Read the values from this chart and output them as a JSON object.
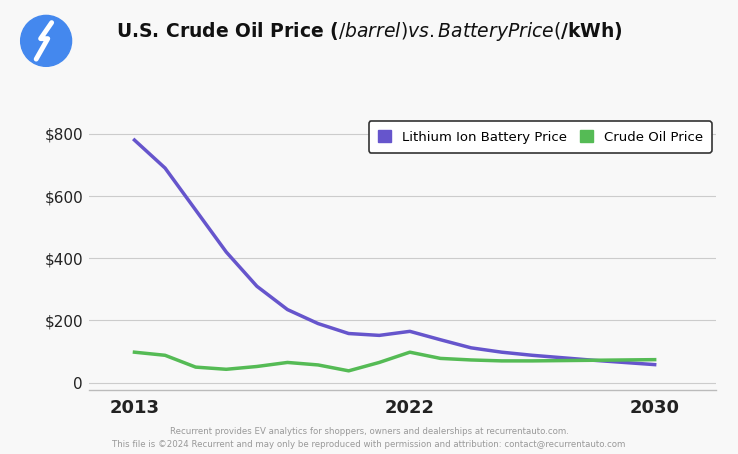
{
  "title_display": "U.S. Crude Oil Price ($/barrel)vs. Battery Price ($/kWh)",
  "battery_years": [
    2013,
    2014,
    2015,
    2016,
    2017,
    2018,
    2019,
    2020,
    2021,
    2022,
    2023,
    2024,
    2025,
    2026,
    2027,
    2028,
    2029,
    2030
  ],
  "battery_prices": [
    780,
    690,
    555,
    420,
    310,
    235,
    190,
    158,
    152,
    165,
    138,
    112,
    98,
    88,
    80,
    72,
    65,
    58
  ],
  "oil_years": [
    2013,
    2014,
    2015,
    2016,
    2017,
    2018,
    2019,
    2020,
    2021,
    2022,
    2023,
    2024,
    2025,
    2026,
    2027,
    2028,
    2029,
    2030
  ],
  "oil_prices": [
    98,
    88,
    50,
    43,
    52,
    65,
    57,
    38,
    65,
    98,
    78,
    73,
    70,
    70,
    71,
    72,
    73,
    74
  ],
  "battery_color": "#6655cc",
  "oil_color": "#55bb55",
  "background_color": "#f8f8f8",
  "yticks": [
    0,
    200,
    400,
    600,
    800
  ],
  "ylim": [
    -25,
    880
  ],
  "xlim": [
    2011.5,
    2032
  ],
  "xtick_positions": [
    2013,
    2022,
    2030
  ],
  "xtick_labels": [
    "2013",
    "2022",
    "2030"
  ],
  "legend_battery": "Lithium Ion Battery Price",
  "legend_oil": "Crude Oil Price",
  "footer_line1": "Recurrent provides EV analytics for shoppers, owners and dealerships at recurrentauto.com.",
  "footer_line2": "This file is ©2024 Recurrent and may only be reproduced with permission and attribution: contact@recurrentauto.com",
  "line_width": 2.5,
  "icon_color_bg": "#4488ee"
}
